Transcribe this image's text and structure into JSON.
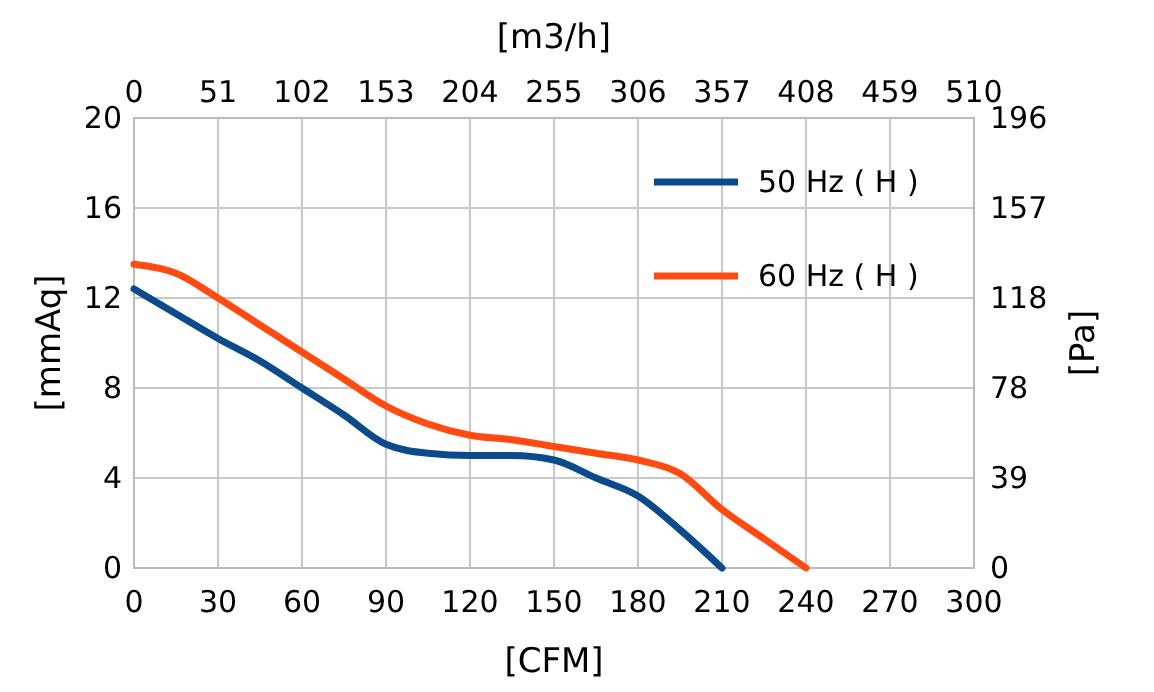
{
  "chart_data": {
    "type": "line",
    "xlabel": "[CFM]",
    "ylabel": "[mmAq]",
    "y2label": "[Pa]",
    "x2label": "[m3/h]",
    "x": [
      0,
      15,
      30,
      45,
      60,
      75,
      90,
      105,
      120,
      135,
      150,
      165,
      180,
      195,
      210,
      225,
      240
    ],
    "series": [
      {
        "name": "50 Hz ( H )",
        "color": "#0b4a8b",
        "values": [
          12.4,
          11.3,
          10.2,
          9.2,
          8.0,
          6.8,
          5.5,
          5.1,
          5.0,
          5.0,
          4.8,
          4.0,
          3.2,
          1.7,
          0,
          null,
          null
        ]
      },
      {
        "name": "60 Hz ( H )",
        "color": "#ff4b12",
        "values": [
          13.5,
          13.1,
          12.0,
          10.8,
          9.6,
          8.4,
          7.2,
          6.4,
          5.9,
          5.7,
          5.4,
          5.1,
          4.8,
          4.2,
          2.6,
          1.3,
          0
        ]
      }
    ],
    "xlim": [
      0,
      300
    ],
    "xticks": [
      0,
      30,
      60,
      90,
      120,
      150,
      180,
      210,
      240,
      270,
      300
    ],
    "ylim": [
      0,
      20
    ],
    "yticks": [
      0,
      4,
      8,
      12,
      16,
      20
    ],
    "x2lim": [
      0,
      510
    ],
    "x2ticks": [
      0,
      51,
      102,
      153,
      204,
      255,
      306,
      357,
      408,
      459,
      510
    ],
    "y2lim": [
      0,
      196
    ],
    "y2ticks": [
      0,
      {
        "value": 39.2,
        "label": "39"
      },
      {
        "value": 78.4,
        "label": "78"
      },
      {
        "value": 117.6,
        "label": "118"
      },
      {
        "value": 156.8,
        "label": "157"
      },
      196
    ],
    "grid": true,
    "legend": "top right",
    "marker": "none",
    "line_style": "solid"
  }
}
